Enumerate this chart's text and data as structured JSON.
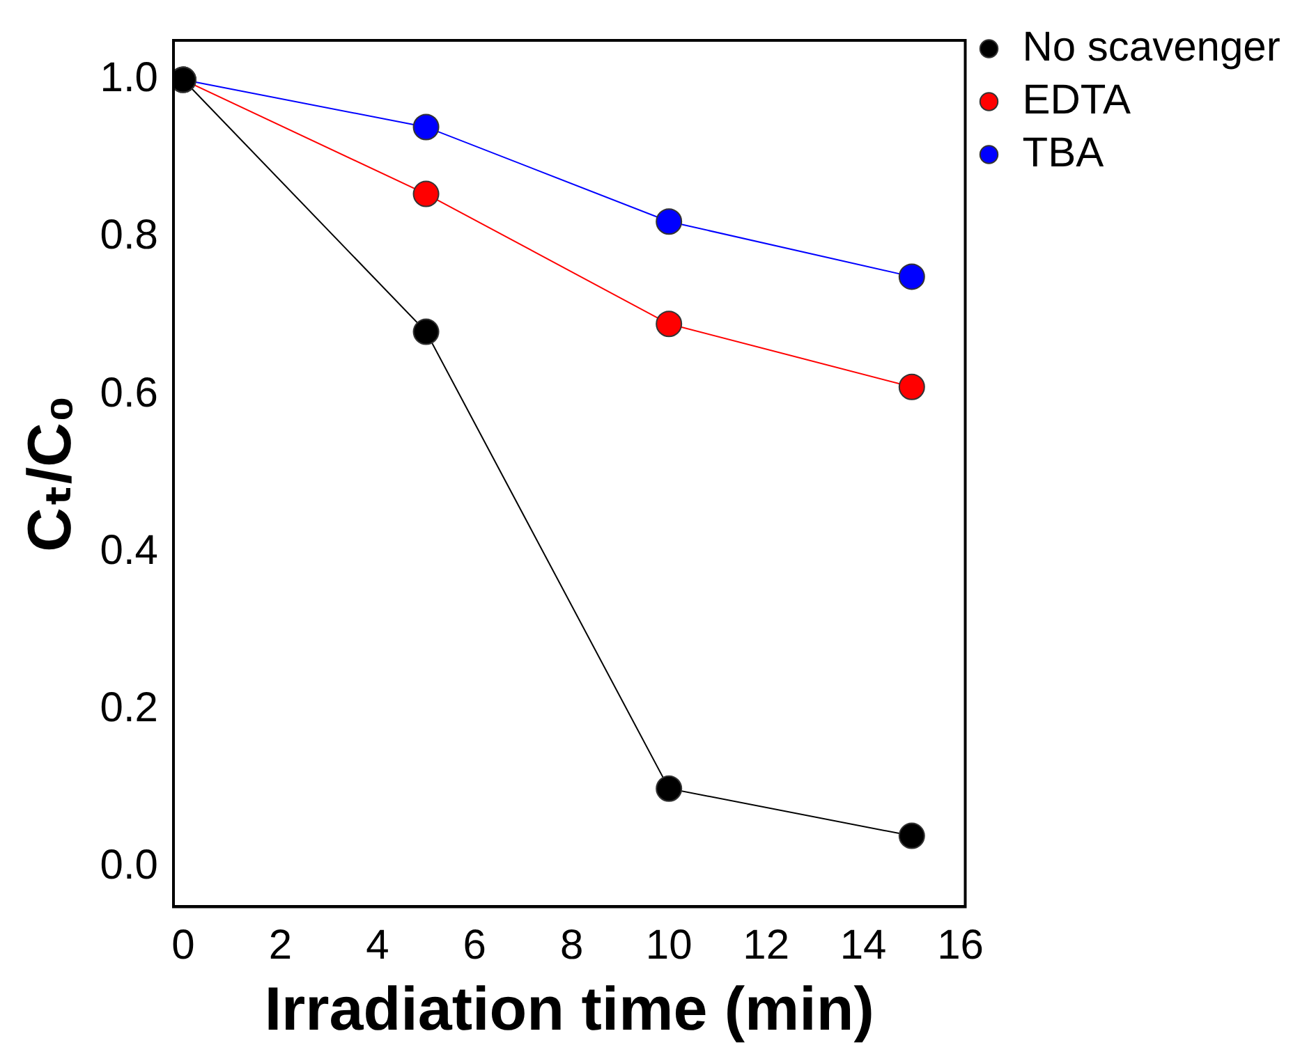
{
  "chart_data": {
    "type": "line",
    "xlabel": "Irradiation time (min)",
    "ylabel": "Cₜ/C₀",
    "x": [
      0,
      5,
      10,
      15
    ],
    "series": [
      {
        "name": "No scavenger",
        "color": "#000000",
        "values": [
          1.0,
          0.68,
          0.1,
          0.04
        ]
      },
      {
        "name": "EDTA",
        "color": "#ff0000",
        "values": [
          1.0,
          0.855,
          0.69,
          0.61
        ]
      },
      {
        "name": "TBA",
        "color": "#0000ff",
        "values": [
          1.0,
          0.94,
          0.82,
          0.75
        ]
      }
    ],
    "xlim": [
      -0.2,
      16.1
    ],
    "xticks": [
      0,
      2,
      4,
      6,
      8,
      10,
      12,
      14,
      16
    ],
    "ylim": [
      -0.05,
      1.05
    ],
    "yticks": [
      {
        "value": 0,
        "label": "0.0"
      },
      0.2,
      0.4,
      0.6,
      0.8,
      {
        "value": 1,
        "label": "1.0"
      }
    ],
    "grid": false,
    "legend": "top right",
    "marker": "circle",
    "line_style": "solid"
  }
}
